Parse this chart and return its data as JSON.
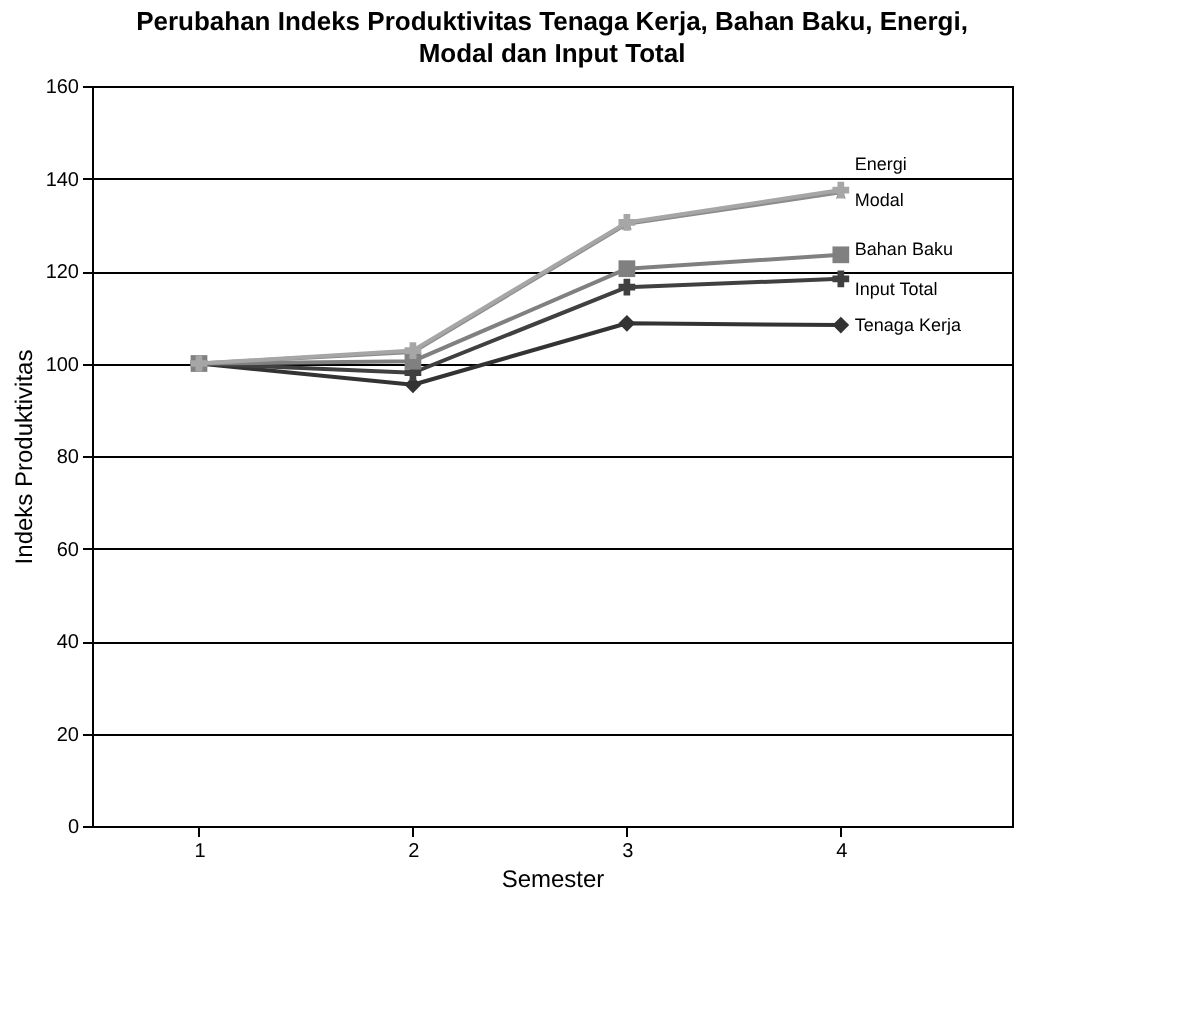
{
  "chart_data": {
    "type": "line",
    "title": "Perubahan Indeks Produktivitas Tenaga Kerja, Bahan Baku, Energi, Modal dan Input Total",
    "xlabel": "Semester",
    "ylabel": "Indeks Produktivitas",
    "categories": [
      "1",
      "2",
      "3",
      "4"
    ],
    "series": [
      {
        "name": "Tenaga Kerja",
        "color": "#333333",
        "marker": "diamond",
        "values": [
          100,
          95.4,
          108.7,
          108.3
        ]
      },
      {
        "name": "Input Total",
        "color": "#404040",
        "marker": "cross",
        "values": [
          100,
          98,
          116.5,
          118.3
        ]
      },
      {
        "name": "Bahan Baku",
        "color": "#808080",
        "marker": "square",
        "values": [
          100,
          100.5,
          120.5,
          123.5
        ]
      },
      {
        "name": "Modal",
        "color": "#8c8c8c",
        "marker": "star",
        "values": [
          100,
          102.5,
          130.2,
          137
        ]
      },
      {
        "name": "Energi",
        "color": "#a6a6a6",
        "marker": "cross",
        "values": [
          100,
          102.8,
          130.5,
          137.5
        ]
      }
    ],
    "ylim": [
      0,
      160
    ],
    "yticks": [
      0,
      20,
      40,
      60,
      80,
      100,
      120,
      140,
      160
    ],
    "grid": "y",
    "legend": false,
    "line_style": "solid"
  }
}
